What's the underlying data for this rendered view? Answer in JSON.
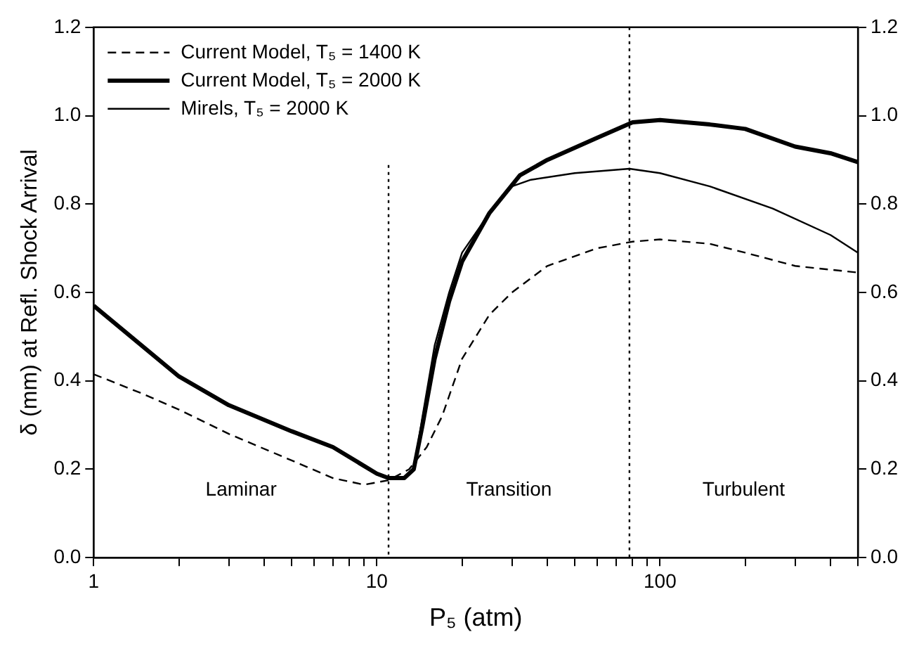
{
  "chart_data": {
    "type": "line",
    "xlabel": "P₅ (atm)",
    "ylabel": "δ (mm) at Refl. Shock Arrival",
    "log": "x",
    "xlim": [
      1,
      500
    ],
    "xticks": [
      1,
      {
        "value": 2,
        "label": null
      },
      {
        "value": 3,
        "label": null
      },
      {
        "value": 4,
        "label": null
      },
      {
        "value": 5,
        "label": null
      },
      {
        "value": 6,
        "label": null
      },
      {
        "value": 7,
        "label": null
      },
      {
        "value": 8,
        "label": null
      },
      {
        "value": 9,
        "label": null
      },
      10,
      {
        "value": 20,
        "label": null
      },
      {
        "value": 30,
        "label": null
      },
      {
        "value": 40,
        "label": null
      },
      {
        "value": 50,
        "label": null
      },
      {
        "value": 60,
        "label": null
      },
      {
        "value": 70,
        "label": null
      },
      {
        "value": 80,
        "label": null
      },
      {
        "value": 90,
        "label": null
      },
      100,
      {
        "value": 200,
        "label": null
      },
      {
        "value": 300,
        "label": null
      },
      {
        "value": 400,
        "label": null
      },
      {
        "value": 500,
        "label": null
      }
    ],
    "ylim": [
      0,
      1.2
    ],
    "yticks": [
      {
        "value": 0,
        "label": "0.0"
      },
      {
        "value": 0.2,
        "label": "0.2"
      },
      {
        "value": 0.4,
        "label": "0.4"
      },
      {
        "value": 0.6,
        "label": "0.6"
      },
      {
        "value": 0.8,
        "label": "0.8"
      },
      {
        "value": 1,
        "label": "1.0"
      },
      {
        "value": 1.2,
        "label": "1.2"
      }
    ],
    "y2lim": [
      0,
      1.2
    ],
    "y2ticks": [
      {
        "value": 0,
        "label": "0.0"
      },
      {
        "value": 0.2,
        "label": "0.2"
      },
      {
        "value": 0.4,
        "label": "0.4"
      },
      {
        "value": 0.6,
        "label": "0.6"
      },
      {
        "value": 0.8,
        "label": "0.8"
      },
      {
        "value": 1,
        "label": "1.0"
      },
      {
        "value": 1.2,
        "label": "1.2"
      }
    ],
    "grid": false,
    "legend": "top left",
    "marker": "none",
    "series": [
      {
        "name": "Current Model, T₅ = 1400 K",
        "color": "#000000",
        "line_style": "dashed",
        "x": [
          1,
          1.5,
          2,
          3,
          5,
          7,
          9,
          11,
          13,
          15,
          17,
          20,
          25,
          30,
          40,
          60,
          80,
          100,
          150,
          200,
          300,
          500
        ],
        "values": [
          0.415,
          0.37,
          0.335,
          0.28,
          0.22,
          0.18,
          0.165,
          0.175,
          0.2,
          0.25,
          0.32,
          0.45,
          0.55,
          0.6,
          0.66,
          0.7,
          0.715,
          0.72,
          0.71,
          0.69,
          0.66,
          0.645
        ]
      },
      {
        "name": "Current Model, T₅ = 2000 K",
        "color": "#000000",
        "line_style": "solid",
        "x": [
          1,
          2,
          3,
          5,
          7,
          10,
          11,
          12.5,
          13.5,
          14.5,
          16,
          18,
          20,
          25,
          32,
          40,
          60,
          80,
          100,
          150,
          200,
          300,
          400,
          500
        ],
        "values": [
          0.57,
          0.41,
          0.345,
          0.286,
          0.25,
          0.19,
          0.18,
          0.18,
          0.2,
          0.3,
          0.45,
          0.58,
          0.67,
          0.78,
          0.865,
          0.9,
          0.95,
          0.985,
          0.99,
          0.98,
          0.97,
          0.93,
          0.915,
          0.895
        ]
      },
      {
        "name": "Mirels, T₅ = 2000 K",
        "color": "#000000",
        "line_style": "solid",
        "x": [
          1,
          2,
          3,
          5,
          7,
          10,
          11,
          12.5,
          13.5,
          14.5,
          16,
          18,
          20,
          25,
          30,
          35,
          50,
          78,
          100,
          150,
          250,
          400,
          500
        ],
        "values": [
          0.57,
          0.41,
          0.345,
          0.286,
          0.25,
          0.19,
          0.18,
          0.18,
          0.2,
          0.32,
          0.48,
          0.6,
          0.69,
          0.78,
          0.84,
          0.855,
          0.87,
          0.88,
          0.87,
          0.84,
          0.79,
          0.73,
          0.69
        ]
      }
    ],
    "ref_lines": [
      {
        "axis": "x",
        "value": 11,
        "color": "#000000",
        "line_style": "dotted"
      },
      {
        "axis": "x",
        "value": 78,
        "color": "#000000",
        "line_style": "dotted"
      }
    ],
    "annotations": [
      "Laminar",
      "Transition",
      "Turbulent"
    ]
  }
}
